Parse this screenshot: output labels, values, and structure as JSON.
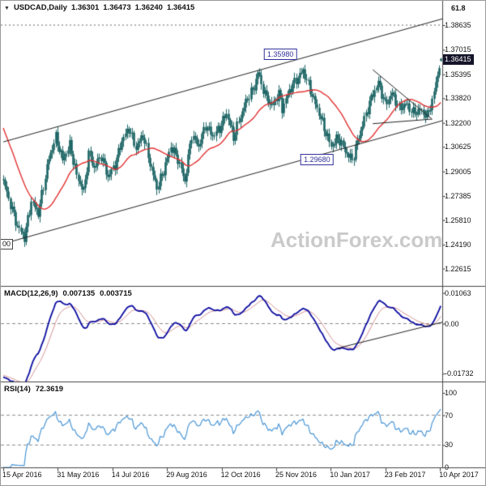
{
  "watermark": {
    "text": "ActionForex.com"
  },
  "chart_data": {
    "type": "candlestick",
    "title": "USDCAD Daily with MACD and RSI",
    "symbol_display": "USDCAD,Daily",
    "quote": {
      "open": "1.36301",
      "high": "1.36473",
      "low": "1.36240",
      "close": "1.36415"
    },
    "price_axis": {
      "labels": [
        "1.38635",
        "1.37015",
        "1.35395",
        "1.33820",
        "1.32200",
        "1.30625",
        "1.29005",
        "1.27385",
        "1.25810",
        "1.24190",
        "1.22615"
      ],
      "current": "1.36415"
    },
    "x_labels": [
      "15 Apr 2016",
      "31 May 2016",
      "14 Jul 2016",
      "29 Aug 2016",
      "12 Oct 2016",
      "25 Nov 2016",
      "10 Jan 2017",
      "23 Feb 2017",
      "10 Apr 2017"
    ],
    "candles": {
      "days": 252,
      "anchors": [
        [
          0,
          1.284
        ],
        [
          3,
          1.272
        ],
        [
          8,
          1.254
        ],
        [
          12,
          1.2465
        ],
        [
          16,
          1.2705
        ],
        [
          20,
          1.2625
        ],
        [
          26,
          1.2985
        ],
        [
          30,
          1.3125
        ],
        [
          34,
          1.2975
        ],
        [
          38,
          1.3075
        ],
        [
          42,
          1.2875
        ],
        [
          46,
          1.2765
        ],
        [
          49,
          1.3015
        ],
        [
          52,
          1.2925
        ],
        [
          56,
          1.3005
        ],
        [
          60,
          1.2865
        ],
        [
          64,
          1.2945
        ],
        [
          68,
          1.3105
        ],
        [
          72,
          1.3185
        ],
        [
          76,
          1.3055
        ],
        [
          80,
          1.3145
        ],
        [
          84,
          1.2955
        ],
        [
          88,
          1.2795
        ],
        [
          92,
          1.2905
        ],
        [
          96,
          1.3065
        ],
        [
          100,
          1.2985
        ],
        [
          104,
          1.2835
        ],
        [
          108,
          1.3145
        ],
        [
          112,
          1.3065
        ],
        [
          116,
          1.3205
        ],
        [
          120,
          1.3135
        ],
        [
          124,
          1.3185
        ],
        [
          128,
          1.3285
        ],
        [
          132,
          1.3125
        ],
        [
          136,
          1.3265
        ],
        [
          140,
          1.3385
        ],
        [
          144,
          1.3455
        ],
        [
          146,
          1.3555
        ],
        [
          150,
          1.3405
        ],
        [
          154,
          1.3335
        ],
        [
          158,
          1.3415
        ],
        [
          160,
          1.3315
        ],
        [
          164,
          1.3435
        ],
        [
          168,
          1.3505
        ],
        [
          172,
          1.3565
        ],
        [
          176,
          1.3435
        ],
        [
          180,
          1.3315
        ],
        [
          184,
          1.3185
        ],
        [
          188,
          1.3065
        ],
        [
          192,
          1.3125
        ],
        [
          196,
          1.3035
        ],
        [
          200,
          1.2975
        ],
        [
          203,
          1.3095
        ],
        [
          207,
          1.3245
        ],
        [
          211,
          1.3385
        ],
        [
          215,
          1.3485
        ],
        [
          219,
          1.3345
        ],
        [
          223,
          1.3415
        ],
        [
          227,
          1.3315
        ],
        [
          231,
          1.3345
        ],
        [
          235,
          1.3285
        ],
        [
          239,
          1.3305
        ],
        [
          243,
          1.3265
        ],
        [
          246,
          1.3365
        ],
        [
          248,
          1.3485
        ],
        [
          250,
          1.3585
        ],
        [
          251,
          1.36415
        ]
      ]
    },
    "overlays": {
      "ma_period": 25
    },
    "annotations": {
      "fib": {
        "label": "61.8",
        "price": 1.38635
      },
      "channel": {
        "upper": [
          [
            0,
            1.3095
          ],
          [
            252,
            1.3905
          ]
        ],
        "lower": [
          [
            0,
            1.2425
          ],
          [
            252,
            1.3235
          ]
        ]
      },
      "triangle": {
        "upper": [
          [
            212,
            1.357
          ],
          [
            246,
            1.3245
          ]
        ],
        "lower": [
          [
            212,
            1.3215
          ],
          [
            246,
            1.3245
          ]
        ]
      },
      "callouts": [
        {
          "text": "1.35980",
          "day": 159,
          "price": 1.3672
        },
        {
          "text": "1.29680",
          "day": 180,
          "price": 1.2979
        }
      ],
      "left_edge": {
        "text": "00"
      }
    },
    "indicators": {
      "macd": {
        "label": "MACD(12,26,9)",
        "main_value": "0.007135",
        "signal_value": "0.003715",
        "axis": [
          {
            "text": "0.01063",
            "v": 0.01063
          },
          {
            "text": "0.00",
            "v": 0
          },
          {
            "text": "-0.01732",
            "v": -0.01732
          }
        ],
        "range": [
          0.0125,
          -0.0195
        ],
        "trendline": [
          [
            192,
            -0.0085
          ],
          [
            252,
            0.0005
          ]
        ]
      },
      "rsi": {
        "label": "RSI(14)",
        "value": "72.3619",
        "axis": [
          {
            "text": "100",
            "v": 100
          },
          {
            "text": "70",
            "v": 70
          },
          {
            "text": "30",
            "v": 30
          },
          {
            "text": "0",
            "v": 0
          }
        ],
        "levels": [
          70,
          30
        ]
      }
    },
    "colors": {
      "candle": "#1b6363",
      "ma": "#e23131",
      "macd_main": "#0d0da0",
      "macd_signal": "#d49090",
      "rsi": "#4a96d6",
      "watermark": "#cacaca",
      "axis_text": "#141414",
      "tag_bg": "#14142a",
      "callout": "#30309a",
      "line": "#222222",
      "dashed": "#8a8a8a"
    }
  }
}
